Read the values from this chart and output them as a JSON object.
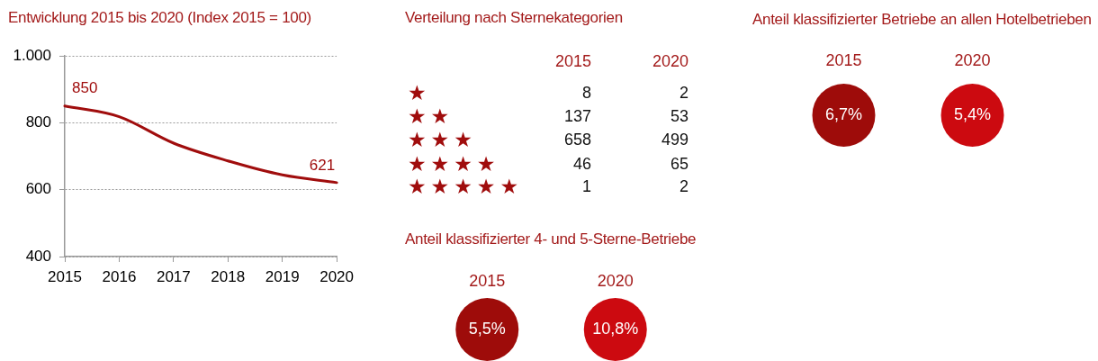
{
  "chart_data": [
    {
      "type": "line",
      "title": "Entwicklung 2015 bis 2020 (Index 2015 = 100)",
      "categories": [
        "2015",
        "2016",
        "2017",
        "2018",
        "2019",
        "2020"
      ],
      "values": [
        850,
        818,
        739,
        686,
        644,
        621
      ],
      "color": "#a00d0d",
      "value_labels": [
        "850",
        null,
        null,
        null,
        null,
        "621"
      ],
      "ylim": [
        400,
        1000
      ],
      "yticks": [
        400,
        600,
        800,
        {
          "value": 1000,
          "label": "1.000"
        }
      ],
      "grid": "y"
    },
    {
      "type": "other",
      "title": "Verteilung nach Sternekategorien",
      "categories": [
        "★",
        "★★",
        "★★★",
        "★★★★",
        "★★★★★"
      ],
      "series": [
        {
          "name": "2015",
          "values": [
            8,
            137,
            658,
            46,
            1
          ]
        },
        {
          "name": "2020",
          "values": [
            2,
            53,
            499,
            65,
            2
          ]
        }
      ],
      "data_labels": true
    },
    {
      "type": "other",
      "title": "Anteil klassifizierter Betriebe an allen Hotelbetrieben",
      "categories": [
        "2015",
        "2020"
      ],
      "values": [
        6.7,
        5.4
      ],
      "colors": [
        "#9e0c0a",
        "#cc0a10"
      ],
      "value_labels": [
        "6,7%",
        "5,4%"
      ]
    },
    {
      "type": "other",
      "title": "Anteil klassifizierter 4- und 5-Sterne-Betriebe",
      "categories": [
        "2015",
        "2020"
      ],
      "values": [
        5.5,
        10.8
      ],
      "colors": [
        "#9e0c0a",
        "#cc0a10"
      ],
      "value_labels": [
        "5,5%",
        "10,8%"
      ]
    }
  ]
}
